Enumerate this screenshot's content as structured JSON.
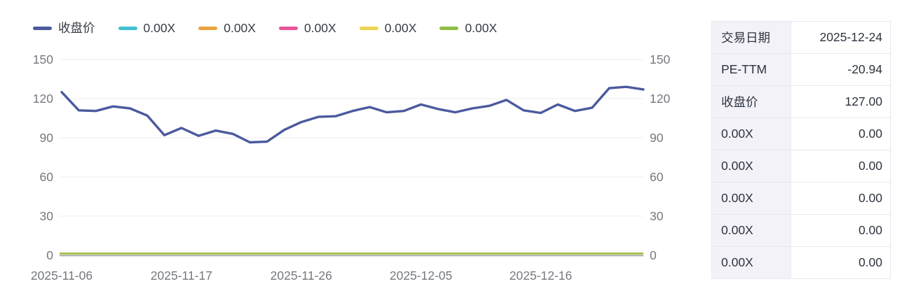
{
  "legend": {
    "items": [
      {
        "label": "收盘价",
        "color": "#4b5a9e"
      },
      {
        "label": "0.00X",
        "color": "#41c0d1"
      },
      {
        "label": "0.00X",
        "color": "#e8a33d"
      },
      {
        "label": "0.00X",
        "color": "#ea5597"
      },
      {
        "label": "0.00X",
        "color": "#ecd452"
      },
      {
        "label": "0.00X",
        "color": "#8fbe43"
      }
    ]
  },
  "chart_data": {
    "type": "line",
    "title": "",
    "xlabel": "",
    "ylabel": "",
    "ylim": [
      0,
      150
    ],
    "y_ticks": [
      0,
      30,
      60,
      90,
      120,
      150
    ],
    "dual_y_axis": true,
    "grid": true,
    "legend_position": "top-left",
    "x_tick_labels": [
      "2025-11-06",
      "2025-11-17",
      "2025-11-26",
      "2025-12-05",
      "2025-12-16"
    ],
    "x_tick_indices": [
      0,
      7,
      14,
      21,
      28
    ],
    "series": [
      {
        "name": "收盘价",
        "color": "#4b5a9e",
        "values": [
          125,
          111,
          110.5,
          114,
          112.5,
          107,
          92,
          97.5,
          91.5,
          95.5,
          93,
          86.5,
          87,
          96,
          102,
          106,
          106.5,
          110.5,
          113.5,
          109.5,
          110.5,
          115.5,
          112,
          109.5,
          112.5,
          114.5,
          119,
          111,
          109,
          115.5,
          110.5,
          113,
          128,
          129,
          127
        ]
      },
      {
        "name": "0.00X",
        "color": "#41c0d1",
        "constant_value": 0
      },
      {
        "name": "0.00X",
        "color": "#e8a33d",
        "constant_value": 0
      },
      {
        "name": "0.00X",
        "color": "#ea5597",
        "constant_value": 0
      },
      {
        "name": "0.00X",
        "color": "#ecd452",
        "constant_value": 0
      },
      {
        "name": "0.00X",
        "color": "#8fbe43",
        "constant_value": 0
      }
    ],
    "palette": {
      "grid_line": "#ecedf3",
      "axis_line": "#9aa1a9",
      "axis_text": "#75787d"
    }
  },
  "table": {
    "rows": [
      {
        "label": "交易日期",
        "value": "2025-12-24"
      },
      {
        "label": "PE-TTM",
        "value": "-20.94"
      },
      {
        "label": "收盘价",
        "value": "127.00"
      },
      {
        "label": "0.00X",
        "value": "0.00"
      },
      {
        "label": "0.00X",
        "value": "0.00"
      },
      {
        "label": "0.00X",
        "value": "0.00"
      },
      {
        "label": "0.00X",
        "value": "0.00"
      },
      {
        "label": "0.00X",
        "value": "0.00"
      }
    ]
  }
}
